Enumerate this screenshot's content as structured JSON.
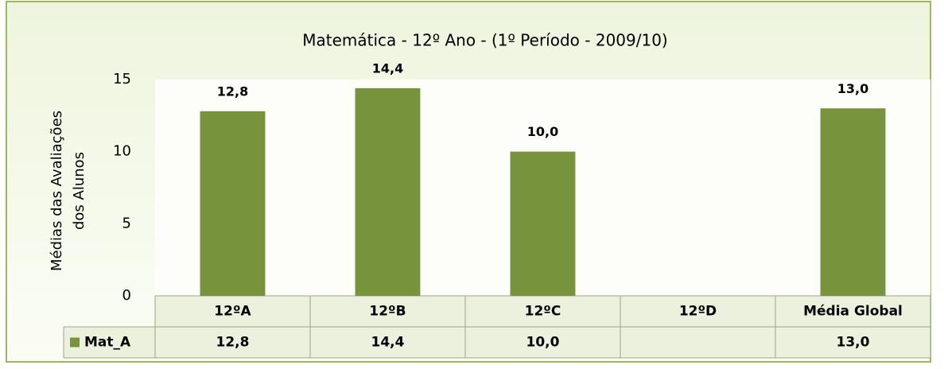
{
  "chart_data": {
    "type": "bar",
    "title": "Matemática - 12º Ano - (1º Período - 2009/10)",
    "ylabel": [
      "Médias das Avaliações",
      "dos Alunos"
    ],
    "categories": [
      "12ºA",
      "12ºB",
      "12ºC",
      "12ºD",
      "Média Global"
    ],
    "series": [
      {
        "name": "Mat_A",
        "color": "#77933c",
        "values": [
          12.8,
          14.4,
          10.0,
          null,
          13.0
        ],
        "value_labels": [
          "12,8",
          "14,4",
          "10,0",
          null,
          "13,0"
        ]
      }
    ],
    "ylim": [
      0,
      15
    ],
    "yticks": [
      0,
      5,
      10,
      15
    ],
    "grid": false,
    "legend": "table"
  }
}
